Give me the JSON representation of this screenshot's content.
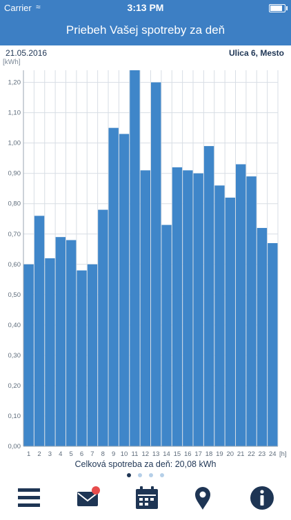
{
  "status": {
    "carrier": "Carrier",
    "time": "3:13 PM",
    "battery_level": 0.9
  },
  "nav": {
    "title": "Priebeh Vašej spotreby za deň"
  },
  "info": {
    "date": "21.05.2016",
    "address": "Ulica 6, Mesto",
    "unit": "[kWh]"
  },
  "summary": "Celková spotreba za deň: 20,08 kWh",
  "pager": {
    "count": 4,
    "active": 0
  },
  "tabs": [
    {
      "icon": "menu-icon"
    },
    {
      "icon": "mail-icon",
      "badge": true
    },
    {
      "icon": "calendar-icon"
    },
    {
      "icon": "location-pin-icon"
    },
    {
      "icon": "info-icon"
    }
  ],
  "colors": {
    "accent": "#3d7fc4",
    "bar": "#3f86c9",
    "text": "#1e3554",
    "grid": "#d7dde4",
    "badge": "#e74c4c"
  },
  "chart_data": {
    "type": "bar",
    "x_unit": "[h]",
    "y_unit": "[kWh]",
    "categories": [
      "1",
      "2",
      "3",
      "4",
      "5",
      "6",
      "7",
      "8",
      "9",
      "10",
      "11",
      "12",
      "13",
      "14",
      "15",
      "16",
      "17",
      "18",
      "19",
      "20",
      "21",
      "22",
      "23",
      "24"
    ],
    "values": [
      0.6,
      0.76,
      0.62,
      0.69,
      0.68,
      0.58,
      0.6,
      0.78,
      1.05,
      1.03,
      1.24,
      0.91,
      1.2,
      0.73,
      0.92,
      0.91,
      0.9,
      0.99,
      0.86,
      0.82,
      0.93,
      0.89,
      0.72,
      0.67
    ],
    "ylim": [
      0,
      1.24
    ],
    "yticks": [
      "0,00",
      "0,10",
      "0,20",
      "0,30",
      "0,40",
      "0,50",
      "0,60",
      "0,70",
      "0,80",
      "0,90",
      "1,00",
      "1,10",
      "1,20"
    ],
    "grid": true,
    "legend": "none"
  }
}
